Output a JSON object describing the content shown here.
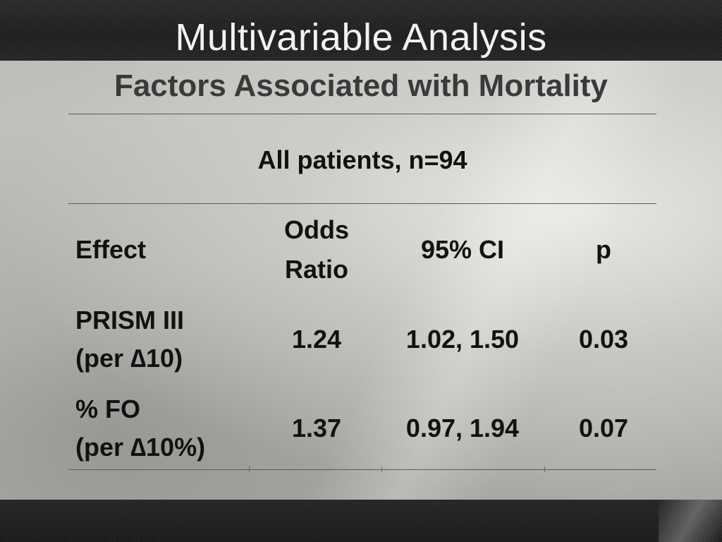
{
  "slide": {
    "title": "Multivariable Analysis",
    "subtitle": "Factors Associated with Mortality"
  },
  "table": {
    "group_header": "All patients, n=94",
    "headers": {
      "effect": "Effect",
      "odds_ratio_line1": "Odds",
      "odds_ratio_line2": "Ratio",
      "ci": "95% CI",
      "p": "p"
    },
    "rows": [
      {
        "effect_line1": "PRISM III",
        "effect_line2": "(per ∆10)",
        "odds_ratio": "1.24",
        "ci": "1.02, 1.50",
        "p": "0.03"
      },
      {
        "effect_line1": "% FO",
        "effect_line2": "(per ∆10%)",
        "odds_ratio": "1.37",
        "ci": "0.97, 1.94",
        "p": "0.07"
      }
    ]
  }
}
